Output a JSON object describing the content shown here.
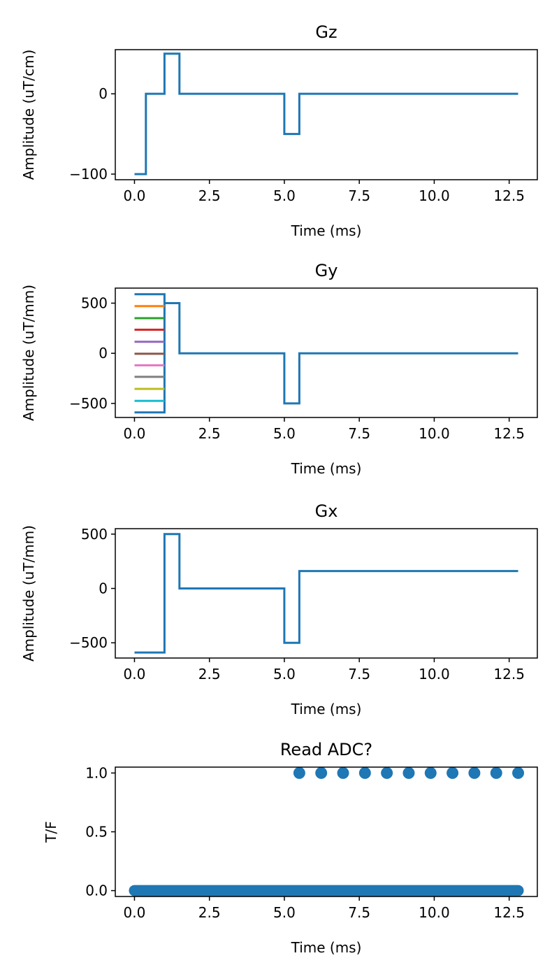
{
  "colors": [
    "#1f77b4",
    "#ff7f0e",
    "#2ca02c",
    "#d62728",
    "#9467bd",
    "#8c564b",
    "#e377c2",
    "#7f7f7f",
    "#bcbd22",
    "#17becf"
  ],
  "chart_data": [
    {
      "type": "line",
      "title": "Gz",
      "xlabel": "Time (ms)",
      "ylabel": "Amplitude (uT/cm)",
      "xlim": [
        -0.64,
        13.44
      ],
      "ylim": [
        -107,
        55
      ],
      "xticks": [
        0,
        2.5,
        5,
        7.5,
        10,
        12.5
      ],
      "xtick_labels": [
        "0.0",
        "2.5",
        "5.0",
        "7.5",
        "10.0",
        "12.5"
      ],
      "yticks": [
        0,
        -100
      ],
      "ytick_labels": [
        "0",
        "−100"
      ],
      "grid": false,
      "series": [
        {
          "x": [
            0,
            0.38,
            0.38,
            1.0,
            1.0,
            1.5,
            1.5,
            5.0,
            5.0,
            5.5,
            5.5,
            12.8
          ],
          "y": [
            -100,
            -100,
            0,
            0,
            50,
            50,
            0,
            0,
            -50,
            -50,
            0,
            0
          ]
        }
      ]
    },
    {
      "type": "line",
      "title": "Gy",
      "xlabel": "Time (ms)",
      "ylabel": "Amplitude (uT/mm)",
      "xlim": [
        -0.64,
        13.44
      ],
      "ylim": [
        -640,
        650
      ],
      "xticks": [
        0,
        2.5,
        5,
        7.5,
        10,
        12.5
      ],
      "xtick_labels": [
        "0.0",
        "2.5",
        "5.0",
        "7.5",
        "10.0",
        "12.5"
      ],
      "yticks": [
        500,
        0,
        -500
      ],
      "ytick_labels": [
        "500",
        "0",
        "−500"
      ],
      "grid": false,
      "series": [
        {
          "x": [
            0,
            1.0,
            1.0,
            0
          ],
          "y": [
            589,
            589,
            -589,
            -589
          ]
        },
        {
          "x": [
            0,
            1.0
          ],
          "y": [
            470,
            470
          ]
        },
        {
          "x": [
            0,
            1.0
          ],
          "y": [
            350,
            350
          ]
        },
        {
          "x": [
            0,
            1.0
          ],
          "y": [
            235,
            235
          ]
        },
        {
          "x": [
            0,
            1.0
          ],
          "y": [
            115,
            115
          ]
        },
        {
          "x": [
            0,
            1.0
          ],
          "y": [
            -5,
            -5
          ]
        },
        {
          "x": [
            0,
            1.0
          ],
          "y": [
            -120,
            -120
          ]
        },
        {
          "x": [
            0,
            1.0
          ],
          "y": [
            -235,
            -235
          ]
        },
        {
          "x": [
            0,
            1.0
          ],
          "y": [
            -355,
            -355
          ]
        },
        {
          "x": [
            0,
            1.0
          ],
          "y": [
            -475,
            -475
          ]
        },
        {
          "x": [
            1.0,
            1.0,
            1.5,
            1.5,
            5.0,
            5.0,
            5.5,
            5.5,
            12.8
          ],
          "y": [
            500,
            500,
            500,
            0,
            0,
            -500,
            -500,
            0,
            0
          ]
        }
      ]
    },
    {
      "type": "line",
      "title": "Gx",
      "xlabel": "Time (ms)",
      "ylabel": "Amplitude (uT/mm)",
      "xlim": [
        -0.64,
        13.44
      ],
      "ylim": [
        -640,
        550
      ],
      "xticks": [
        0,
        2.5,
        5,
        7.5,
        10,
        12.5
      ],
      "xtick_labels": [
        "0.0",
        "2.5",
        "5.0",
        "7.5",
        "10.0",
        "12.5"
      ],
      "yticks": [
        500,
        0,
        -500
      ],
      "ytick_labels": [
        "500",
        "0",
        "−500"
      ],
      "grid": false,
      "series": [
        {
          "x": [
            0,
            1.0,
            1.0,
            1.5,
            1.5,
            5.0,
            5.0,
            5.5,
            5.5,
            12.8
          ],
          "y": [
            -589,
            -589,
            500,
            500,
            0,
            0,
            -500,
            -500,
            160,
            160
          ]
        }
      ]
    },
    {
      "type": "scatter",
      "title": "Read ADC?",
      "xlabel": "Time (ms)",
      "ylabel": "T/F",
      "xlim": [
        -0.64,
        13.44
      ],
      "ylim": [
        -0.05,
        1.05
      ],
      "xticks": [
        0,
        2.5,
        5,
        7.5,
        10,
        12.5
      ],
      "xtick_labels": [
        "0.0",
        "2.5",
        "5.0",
        "7.5",
        "10.0",
        "12.5"
      ],
      "yticks": [
        1.0,
        0.5,
        0.0
      ],
      "ytick_labels": [
        "1.0",
        "0.5",
        "0.0"
      ],
      "grid": false,
      "zeros": {
        "x_start": 0,
        "x_end": 12.8,
        "y": 0
      },
      "ones": {
        "x": [
          5.5,
          6.23,
          6.96,
          7.69,
          8.42,
          9.15,
          9.88,
          10.61,
          11.34,
          12.07,
          12.8
        ],
        "y": 1
      }
    }
  ]
}
